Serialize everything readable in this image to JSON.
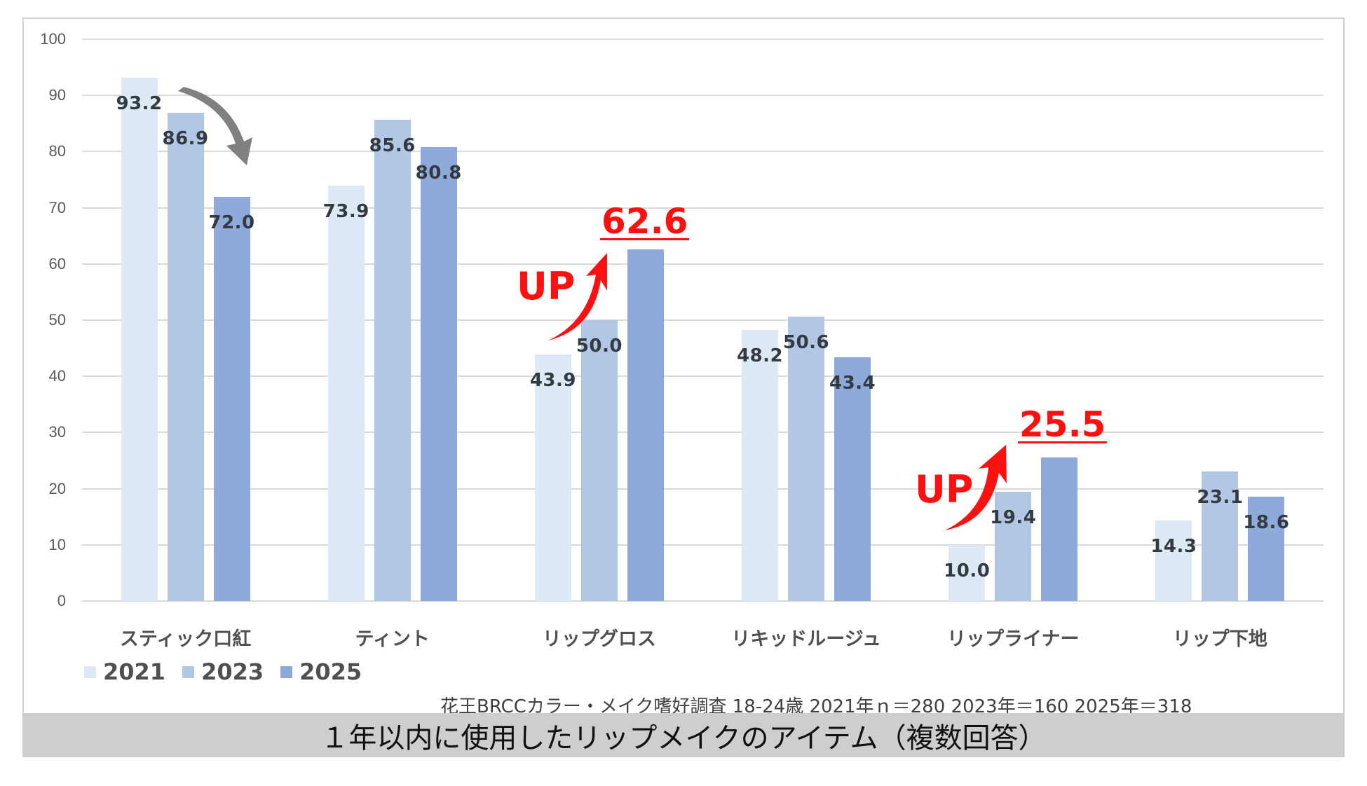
{
  "chart_data": {
    "type": "bar",
    "title": "1年以内に使用したリップメイクのアイテム（複数回答）",
    "xlabel": "",
    "ylabel": "",
    "ylim": [
      0,
      100
    ],
    "yticks": [
      0,
      10,
      20,
      30,
      40,
      50,
      60,
      70,
      80,
      90,
      100
    ],
    "grid": true,
    "legend_position": "bottom-left",
    "categories": [
      "スティック口紅",
      "ティント",
      "リップグロス",
      "リキッドルージュ",
      "リップライナー",
      "リップ下地"
    ],
    "series": [
      {
        "name": "2021",
        "color": "#dde9f5",
        "values": [
          93.2,
          73.9,
          43.9,
          48.2,
          10.0,
          14.3
        ]
      },
      {
        "name": "2023",
        "color": "#b2c6e6",
        "values": [
          86.9,
          85.6,
          50.0,
          50.6,
          19.4,
          23.1
        ]
      },
      {
        "name": "2025",
        "color": "#8eaadb",
        "values": [
          72.0,
          80.8,
          62.6,
          43.4,
          25.5,
          18.6
        ]
      }
    ],
    "value_labels": [
      [
        "93.2",
        "86.9",
        "72.0"
      ],
      [
        "73.9",
        "85.6",
        "80.8"
      ],
      [
        "43.9",
        "50.0",
        "62.6"
      ],
      [
        "48.2",
        "50.6",
        "43.4"
      ],
      [
        "10.0",
        "19.4",
        "25.5"
      ],
      [
        "14.3",
        "23.1",
        "18.6"
      ]
    ],
    "annotations": [
      {
        "type": "down-arrow",
        "category": "スティック口紅",
        "color": "#808080"
      },
      {
        "type": "up-arrow",
        "category": "リップグロス",
        "label": "UP",
        "highlight_value": "62.6",
        "color": "#ff1010"
      },
      {
        "type": "up-arrow",
        "category": "リップライナー",
        "label": "UP",
        "highlight_value": "25.5",
        "color": "#ff1010"
      }
    ],
    "source_note": "花王BRCCカラー・メイク嗜好調査  18-24歳  2021年ｎ＝280  2023年＝160  2025年＝318"
  },
  "labels": {
    "up_1": "UP",
    "up_2": "UP",
    "highlight_1": "62.6",
    "highlight_2": "25.5",
    "source_note": "花王BRCCカラー・メイク嗜好調査  18-24歳  2021年ｎ＝280  2023年＝160  2025年＝318",
    "caption": "１年以内に使用したリップメイクのアイテム（複数回答）"
  }
}
